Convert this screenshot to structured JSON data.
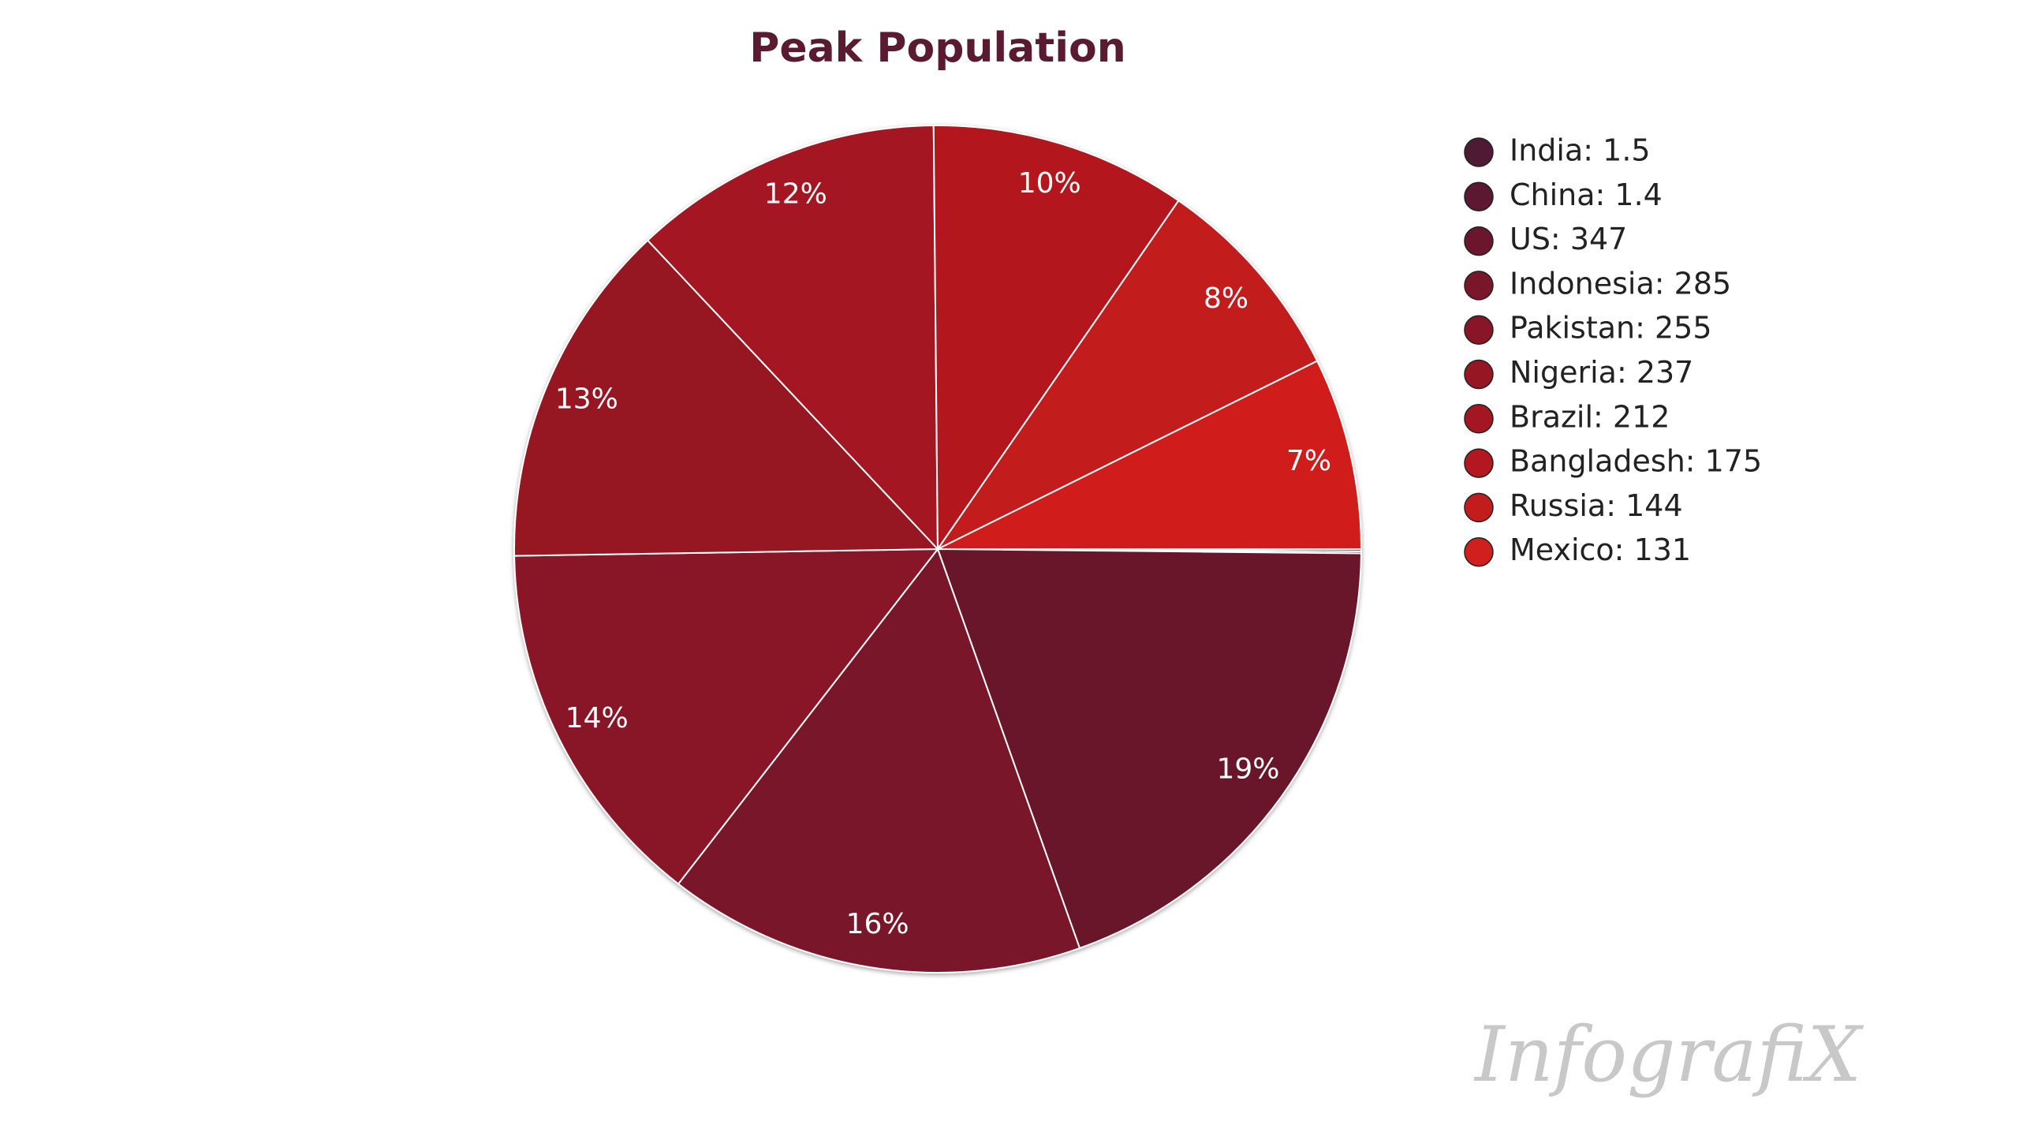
{
  "chart_data": {
    "type": "pie",
    "title": "Peak Population",
    "categories": [
      "India",
      "China",
      "US",
      "Indonesia",
      "Pakistan",
      "Nigeria",
      "Brazil",
      "Bangladesh",
      "Russia",
      "Mexico"
    ],
    "values": [
      1.5,
      1.4,
      347,
      285,
      255,
      237,
      212,
      175,
      144,
      131
    ],
    "value_labels": [
      null,
      null,
      "19%",
      "16%",
      "14%",
      "13%",
      "12%",
      "10%",
      "8%",
      "7%"
    ],
    "legend_labels": [
      "India: 1.5",
      "China: 1.4",
      "US: 347",
      "Indonesia: 285",
      "Pakistan: 255",
      "Nigeria: 237",
      "Brazil: 212",
      "Bangladesh: 175",
      "Russia: 144",
      "Mexico: 131"
    ],
    "colors": [
      "#4f1a33",
      "#5c1830",
      "#6b162c",
      "#7a1629",
      "#891627",
      "#961624",
      "#a41722",
      "#b3171f",
      "#c31c1d",
      "#d11f1d"
    ],
    "legend_position": "right",
    "watermark": "InfografiX"
  }
}
